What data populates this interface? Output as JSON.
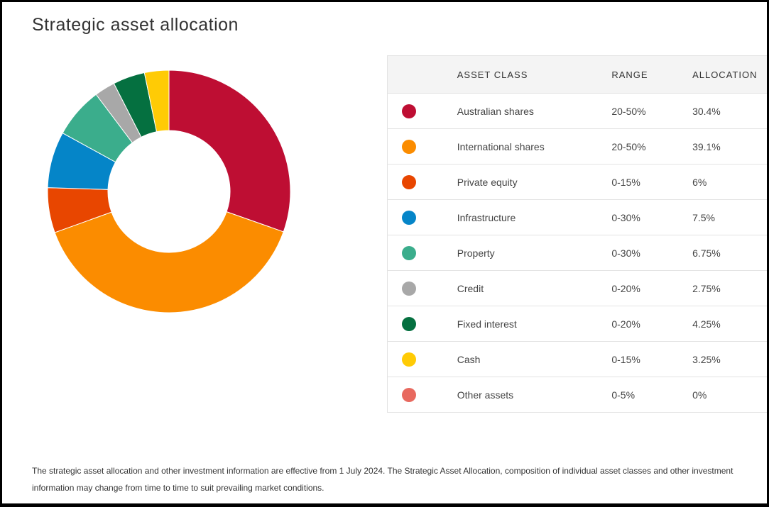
{
  "page": {
    "title": "Strategic asset allocation",
    "footnote": "The strategic asset allocation and other investment information are effective from 1 July 2024. The Strategic Asset Allocation, composition of individual asset classes and other investment information may change from time to time to suit prevailing market conditions."
  },
  "table": {
    "headers": {
      "asset_class": "ASSET CLASS",
      "range": "RANGE",
      "allocation": "ALLOCATION"
    }
  },
  "chart_data": {
    "type": "pie",
    "donut": true,
    "categories": [
      "Australian shares",
      "International shares",
      "Private equity",
      "Infrastructure",
      "Property",
      "Credit",
      "Fixed interest",
      "Cash",
      "Other assets"
    ],
    "values": [
      30.4,
      39.1,
      6,
      7.5,
      6.75,
      2.75,
      4.25,
      3.25,
      0
    ],
    "legend_position": "right",
    "rows": [
      {
        "name": "Australian shares",
        "range": "20-50%",
        "allocation": "30.4%",
        "value": 30.4,
        "color": "#BE0E33"
      },
      {
        "name": "International shares",
        "range": "20-50%",
        "allocation": "39.1%",
        "value": 39.1,
        "color": "#FB8C00"
      },
      {
        "name": "Private equity",
        "range": "0-15%",
        "allocation": "6%",
        "value": 6,
        "color": "#E84600"
      },
      {
        "name": "Infrastructure",
        "range": "0-30%",
        "allocation": "7.5%",
        "value": 7.5,
        "color": "#0585C8"
      },
      {
        "name": "Property",
        "range": "0-30%",
        "allocation": "6.75%",
        "value": 6.75,
        "color": "#3BAD8C"
      },
      {
        "name": "Credit",
        "range": "0-20%",
        "allocation": "2.75%",
        "value": 2.75,
        "color": "#A8A8A8"
      },
      {
        "name": "Fixed interest",
        "range": "0-20%",
        "allocation": "4.25%",
        "value": 4.25,
        "color": "#057040"
      },
      {
        "name": "Cash",
        "range": "0-15%",
        "allocation": "3.25%",
        "value": 3.25,
        "color": "#FFCB05"
      },
      {
        "name": "Other assets",
        "range": "0-5%",
        "allocation": "0%",
        "value": 0,
        "color": "#E8695F"
      }
    ]
  }
}
